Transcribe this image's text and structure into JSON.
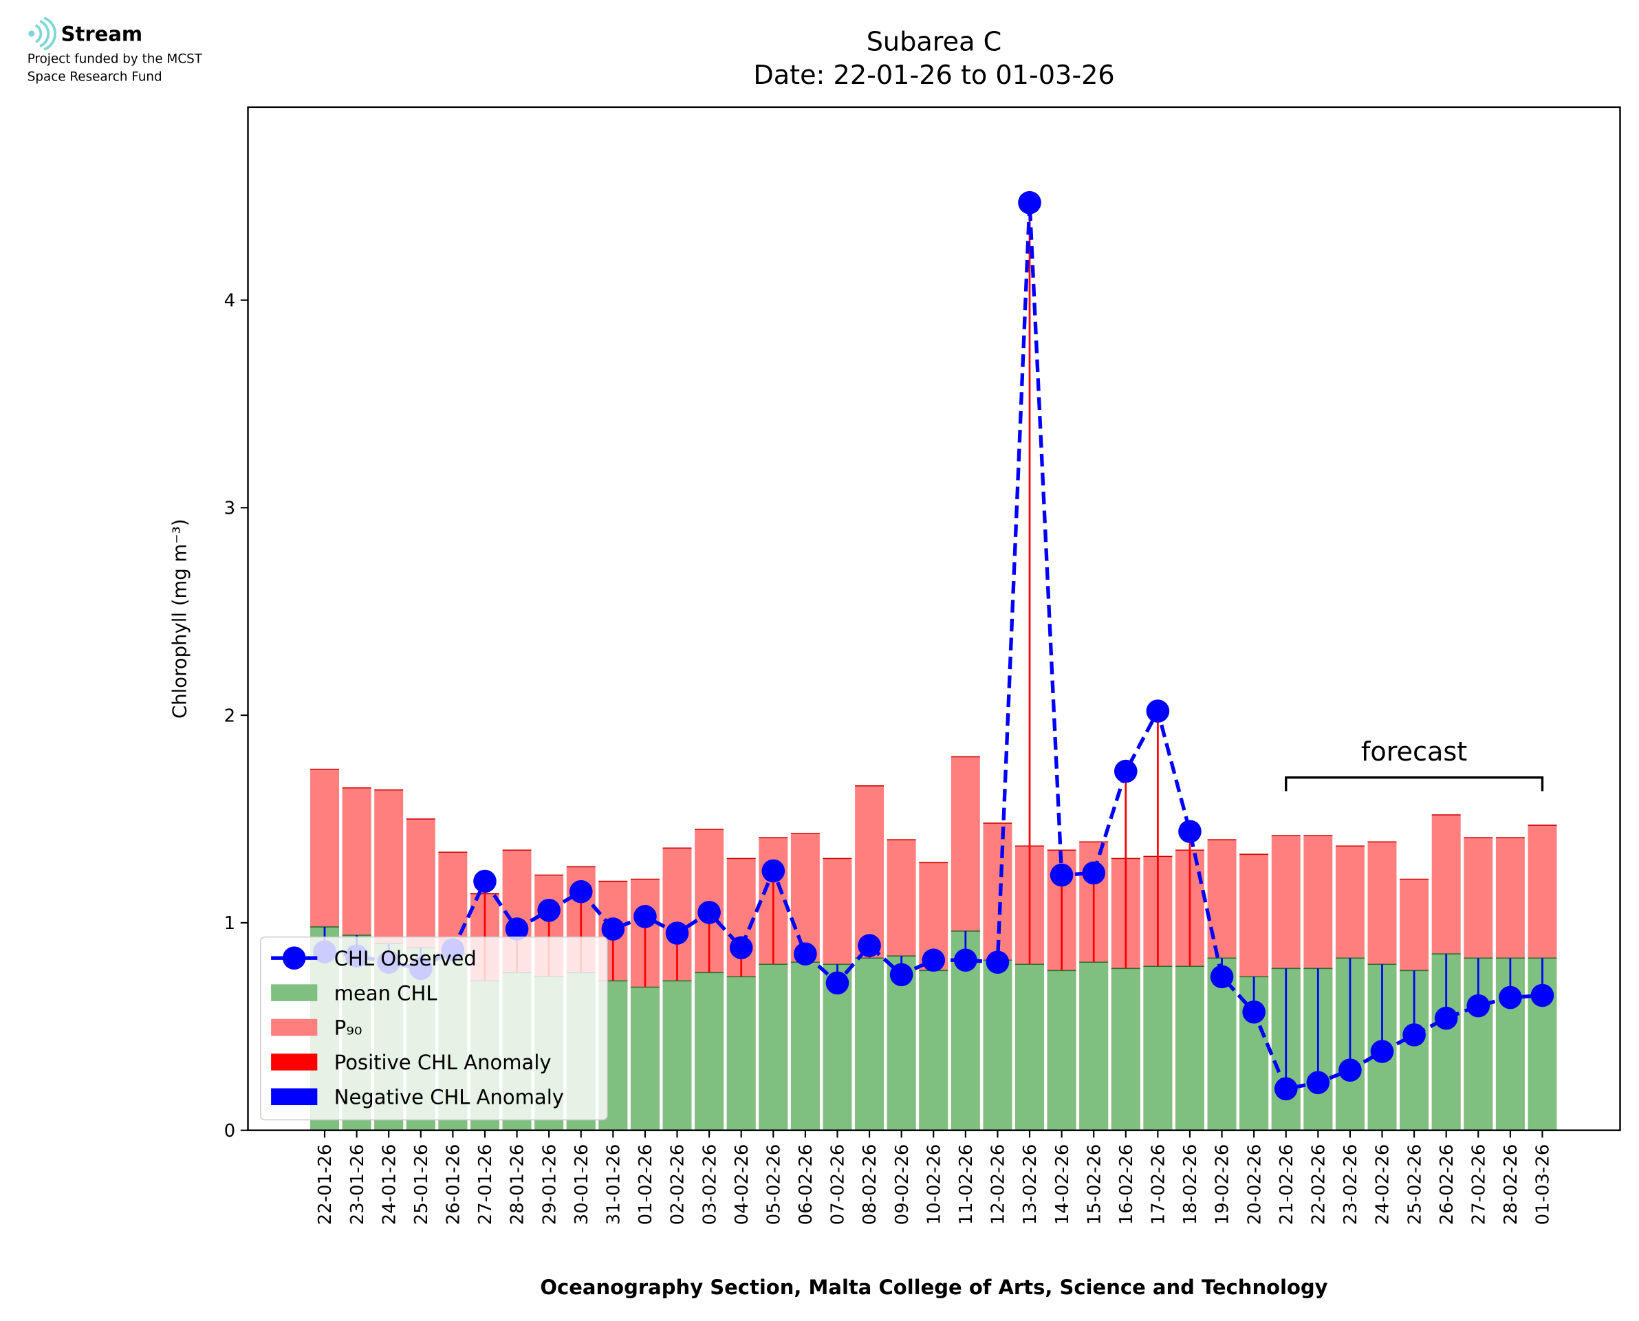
{
  "logo": {
    "name": "Stream",
    "lines": [
      "Project funded by the MCST",
      "Space Research Fund"
    ]
  },
  "chart_data": {
    "type": "bar-line",
    "title": "Subarea C",
    "subtitle": "Date: 22-01-26 to 01-03-26",
    "y_label": "Chlorophyll (mg m⁻³)",
    "x_label": "Oceanography Section, Malta College of Arts, Science and Technology",
    "categories": [
      "22-01-26",
      "23-01-26",
      "24-01-26",
      "25-01-26",
      "26-01-26",
      "27-01-26",
      "28-01-26",
      "29-01-26",
      "30-01-26",
      "31-01-26",
      "01-02-26",
      "02-02-26",
      "03-02-26",
      "04-02-26",
      "05-02-26",
      "06-02-26",
      "07-02-26",
      "08-02-26",
      "09-02-26",
      "10-02-26",
      "11-02-26",
      "12-02-26",
      "13-02-26",
      "14-02-26",
      "15-02-26",
      "16-02-26",
      "17-02-26",
      "18-02-26",
      "19-02-26",
      "20-02-26",
      "21-02-26",
      "22-02-26",
      "23-02-26",
      "24-02-26",
      "25-02-26",
      "26-02-26",
      "27-02-26",
      "28-02-26",
      "01-03-26"
    ],
    "series": [
      {
        "name": "CHL Observed",
        "color": "#0000ff",
        "values": [
          0.86,
          0.84,
          0.81,
          0.78,
          0.87,
          1.2,
          0.97,
          1.06,
          1.15,
          0.97,
          1.03,
          0.95,
          1.05,
          0.88,
          1.25,
          0.85,
          0.71,
          0.89,
          0.75,
          0.82,
          0.82,
          0.81,
          4.47,
          1.23,
          1.24,
          1.73,
          2.02,
          1.44,
          0.74,
          0.57,
          0.2,
          0.23,
          0.29,
          0.38,
          0.46,
          0.54,
          0.6,
          0.64,
          0.65
        ]
      },
      {
        "name": "mean CHL",
        "color": "#7fbf7f",
        "values": [
          0.98,
          0.94,
          0.9,
          0.88,
          0.85,
          0.72,
          0.76,
          0.74,
          0.76,
          0.72,
          0.69,
          0.72,
          0.76,
          0.74,
          0.8,
          0.81,
          0.8,
          0.83,
          0.84,
          0.77,
          0.96,
          0.82,
          0.8,
          0.77,
          0.81,
          0.78,
          0.79,
          0.79,
          0.83,
          0.74,
          0.78,
          0.78,
          0.83,
          0.8,
          0.77,
          0.85,
          0.83,
          0.83,
          0.83
        ]
      },
      {
        "name": "P₉₀",
        "color": "#ff7f7f",
        "values": [
          1.74,
          1.65,
          1.64,
          1.5,
          1.34,
          1.14,
          1.35,
          1.23,
          1.27,
          1.2,
          1.21,
          1.36,
          1.45,
          1.31,
          1.41,
          1.43,
          1.31,
          1.66,
          1.4,
          1.29,
          1.8,
          1.48,
          1.37,
          1.35,
          1.39,
          1.31,
          1.32,
          1.35,
          1.4,
          1.33,
          1.42,
          1.42,
          1.37,
          1.39,
          1.21,
          1.52,
          1.41,
          1.41,
          1.47
        ]
      }
    ],
    "anomaly": {
      "positive": {
        "name": "Positive CHL Anomaly",
        "color": "#ff0000"
      },
      "negative": {
        "name": "Negative CHL Anomaly",
        "color": "#0000ff"
      }
    },
    "annotations": [
      {
        "text": "forecast",
        "x": [
          "21-02-26",
          "01-03-26"
        ],
        "y": 1.7
      }
    ],
    "ylim": [
      0,
      4.93
    ],
    "yticks": [
      0,
      1,
      2,
      3,
      4
    ],
    "legend": "lower left"
  }
}
